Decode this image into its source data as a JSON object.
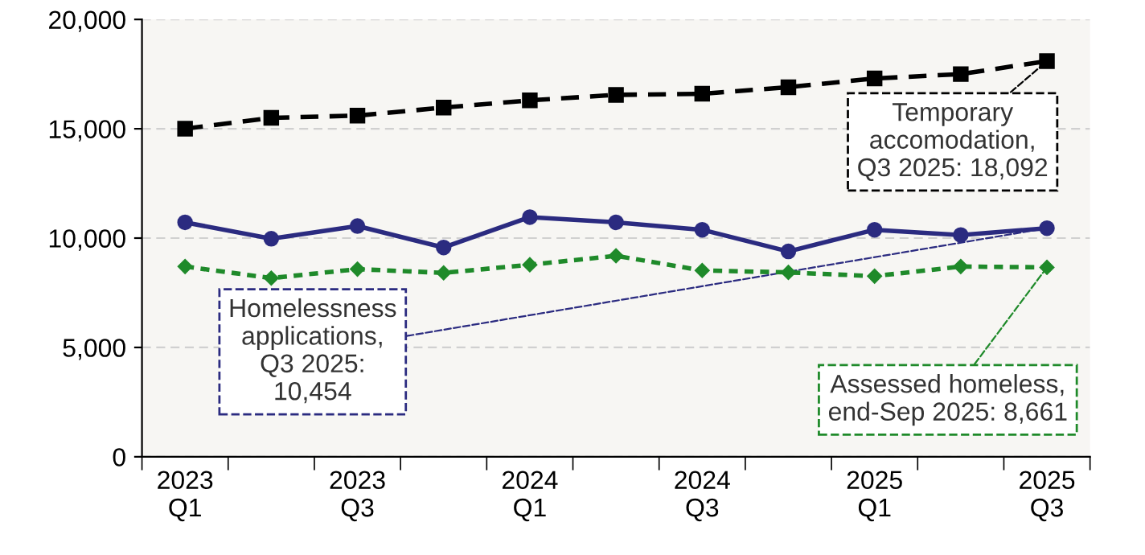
{
  "chart_data": {
    "type": "line",
    "categories": [
      "2023\nQ1",
      null,
      "2023\nQ3",
      null,
      "2024\nQ1",
      null,
      "2024\nQ3",
      null,
      "2025\nQ1",
      null,
      "2025\nQ3"
    ],
    "series": [
      {
        "color": "#000000",
        "marker": "square",
        "line_style": "dashed",
        "values": [
          15000,
          15500,
          15600,
          15970,
          16300,
          16550,
          16600,
          16900,
          17300,
          17500,
          18092
        ]
      },
      {
        "color": "#2b2b80",
        "marker": "circle",
        "line_style": "solid",
        "values": [
          10720,
          9970,
          10550,
          9570,
          10960,
          10720,
          10380,
          9390,
          10380,
          10140,
          10454
        ]
      },
      {
        "color": "#1f8a2a",
        "marker": "diamond",
        "line_style": "dotted",
        "values": [
          8700,
          8170,
          8580,
          8410,
          8780,
          9190,
          8520,
          8430,
          8260,
          8700,
          8661
        ]
      }
    ],
    "annotations": [
      {
        "text": "Temporary\naccomodation,\nQ3 2025: 18,092",
        "x": "2025\nQ3",
        "y": 18092
      },
      {
        "text": "Homelessness\napplications,\nQ3 2025:\n10,454",
        "x": "2025\nQ3",
        "y": 10454
      },
      {
        "text": "Assessed homeless,\nend-Sep 2025: 8,661",
        "x": "2025\nQ3",
        "y": 8661
      }
    ],
    "ylim": [
      0,
      20000
    ],
    "yticks": [
      {
        "value": 0,
        "label": "0"
      },
      {
        "value": 5000,
        "label": "5,000"
      },
      {
        "value": 10000,
        "label": "10,000"
      },
      {
        "value": 15000,
        "label": "15,000"
      },
      {
        "value": 20000,
        "label": "20,000"
      }
    ],
    "grid": "y",
    "legend": false
  }
}
